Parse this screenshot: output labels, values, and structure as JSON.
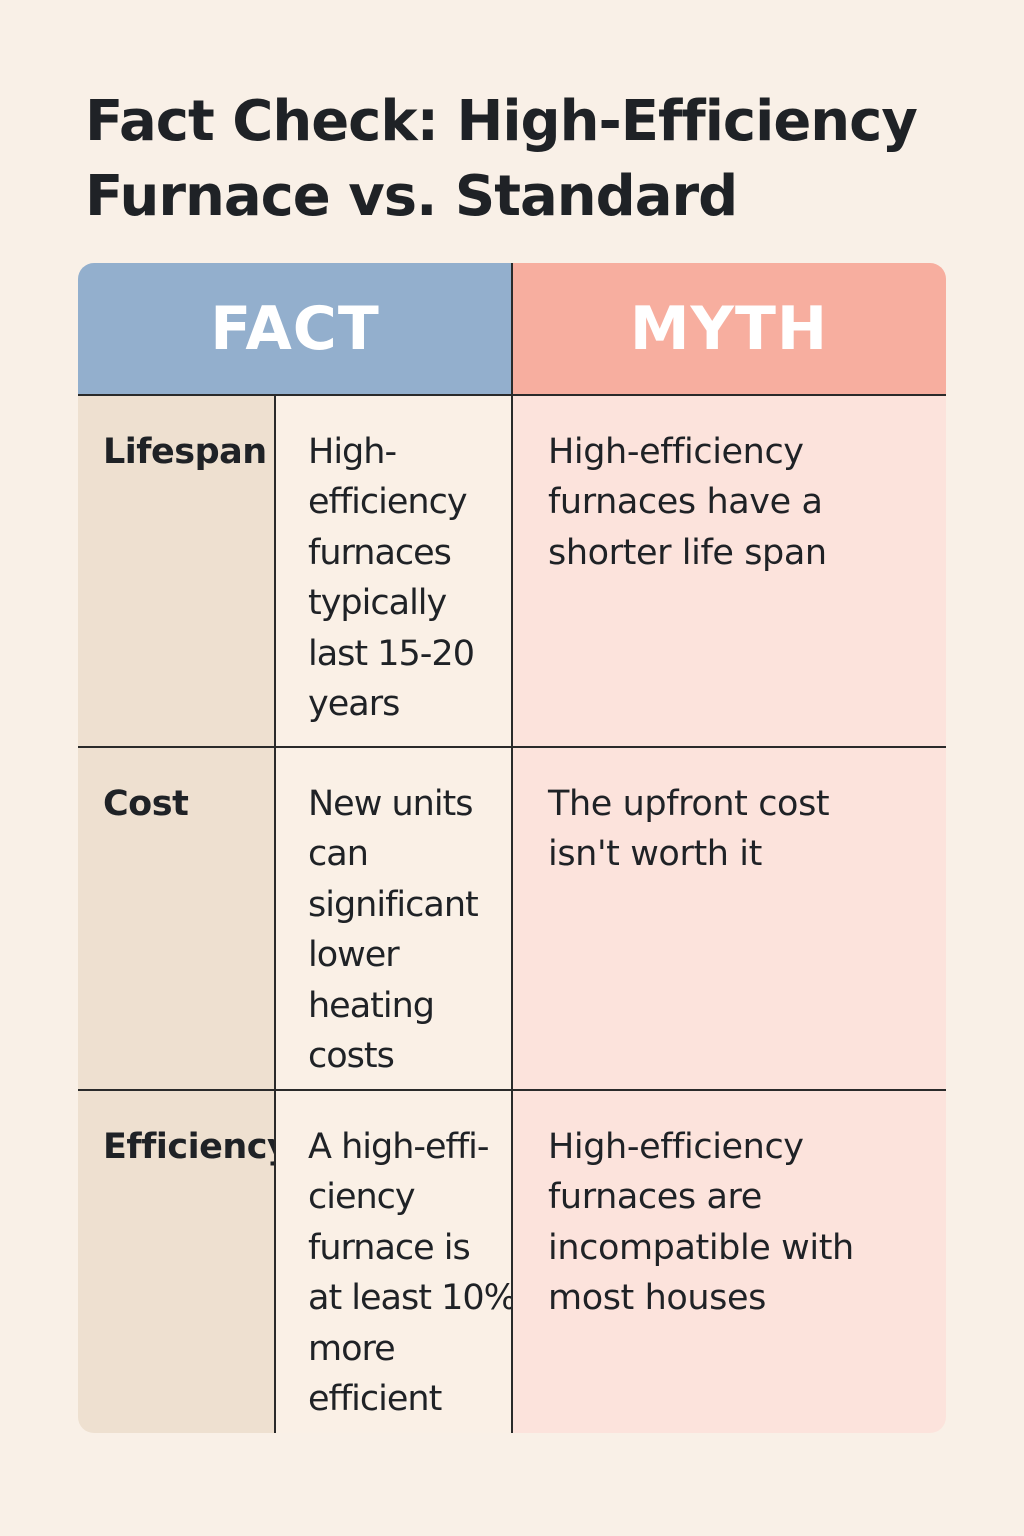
{
  "title": {
    "line1": "Fact Check: High-Efficiency",
    "line2": "Furnace vs. Standard"
  },
  "columns": {
    "fact": "FACT",
    "myth": "MYTH"
  },
  "rows": [
    {
      "label": "Lifespan",
      "fact_lines": [
        "High-",
        "efficiency",
        "furnaces",
        "typically",
        "last 15-20",
        "years"
      ],
      "myth_lines": [
        "High-efficiency",
        "furnaces have a",
        "shorter life span"
      ]
    },
    {
      "label": "Cost",
      "fact_lines": [
        "New units",
        "can",
        "significant",
        "lower",
        "heating",
        "costs"
      ],
      "myth_lines": [
        "The upfront cost",
        "isn't worth it"
      ]
    },
    {
      "label": "Efficiency",
      "fact_lines": [
        "A high-effi-",
        "ciency",
        "furnace is",
        "at least 10%",
        "more",
        "efficient"
      ],
      "myth_lines": [
        "High-efficiency",
        "furnaces are",
        "incompatible with",
        "most houses"
      ]
    }
  ],
  "colors": {
    "background": "#f9f0e7",
    "fact_header": "#93afcd",
    "myth_header": "#f7ae9f",
    "label_column": "#eee0d0",
    "fact_column": "#faf0e6",
    "myth_column": "#fce3dc",
    "text": "#1f2226"
  }
}
